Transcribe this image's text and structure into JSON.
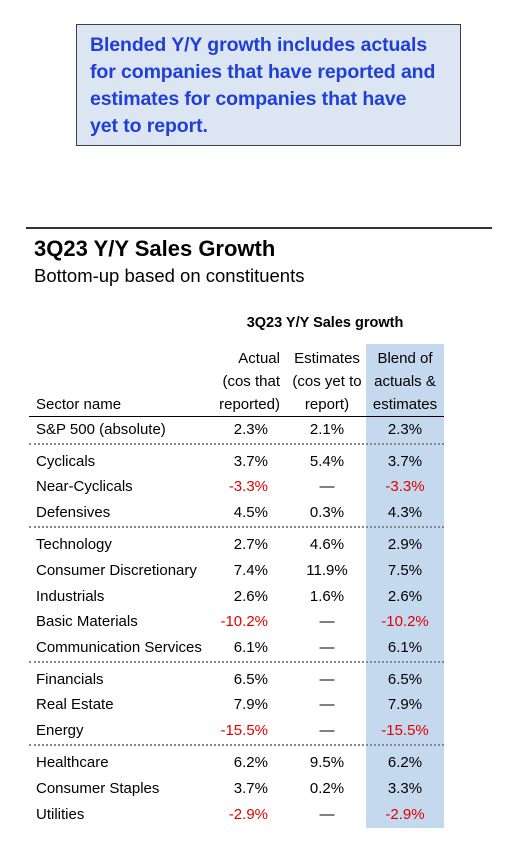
{
  "callout": {
    "lines": [
      "Blended Y/Y growth includes actuals",
      "for companies that have reported and",
      "estimates for companies that have",
      "yet to report."
    ]
  },
  "title": "3Q23 Y/Y Sales Growth",
  "subtitle": "Bottom-up based on constituents",
  "table": {
    "heading": "3Q23 Y/Y Sales growth",
    "columns": {
      "sector": "Sector name",
      "actual": [
        "Actual",
        "(cos that",
        "reported)"
      ],
      "estimates": [
        "Estimates",
        "(cos yet to",
        "report)"
      ],
      "blend": [
        "Blend of",
        "actuals &",
        "estimates"
      ]
    },
    "rows": [
      {
        "sector": "S&P 500 (absolute)",
        "actual": "2.3%",
        "estimates": "2.1%",
        "blend": "2.3%"
      },
      {
        "sector": "Cyclicals",
        "actual": "3.7%",
        "estimates": "5.4%",
        "blend": "3.7%"
      },
      {
        "sector": "Near-Cyclicals",
        "actual": "-3.3%",
        "estimates": "—",
        "blend": "-3.3%"
      },
      {
        "sector": "Defensives",
        "actual": "4.5%",
        "estimates": "0.3%",
        "blend": "4.3%"
      },
      {
        "sector": "Technology",
        "actual": "2.7%",
        "estimates": "4.6%",
        "blend": "2.9%"
      },
      {
        "sector": "Consumer Discretionary",
        "actual": "7.4%",
        "estimates": "11.9%",
        "blend": "7.5%"
      },
      {
        "sector": "Industrials",
        "actual": "2.6%",
        "estimates": "1.6%",
        "blend": "2.6%"
      },
      {
        "sector": "Basic Materials",
        "actual": "-10.2%",
        "estimates": "—",
        "blend": "-10.2%"
      },
      {
        "sector": "Communication Services",
        "actual": "6.1%",
        "estimates": "—",
        "blend": "6.1%"
      },
      {
        "sector": "Financials",
        "actual": "6.5%",
        "estimates": "—",
        "blend": "6.5%"
      },
      {
        "sector": "Real Estate",
        "actual": "7.9%",
        "estimates": "—",
        "blend": "7.9%"
      },
      {
        "sector": "Energy",
        "actual": "-15.5%",
        "estimates": "—",
        "blend": "-15.5%"
      },
      {
        "sector": "Healthcare",
        "actual": "6.2%",
        "estimates": "9.5%",
        "blend": "6.2%"
      },
      {
        "sector": "Consumer Staples",
        "actual": "3.7%",
        "estimates": "0.2%",
        "blend": "3.3%"
      },
      {
        "sector": "Utilities",
        "actual": "-2.9%",
        "estimates": "—",
        "blend": "-2.9%"
      }
    ]
  },
  "colors": {
    "callout_text": "#1f3fd6",
    "callout_bg": "#dce6f2",
    "blend_column_bg": "#c5d9ee",
    "negative": "#e00000"
  }
}
